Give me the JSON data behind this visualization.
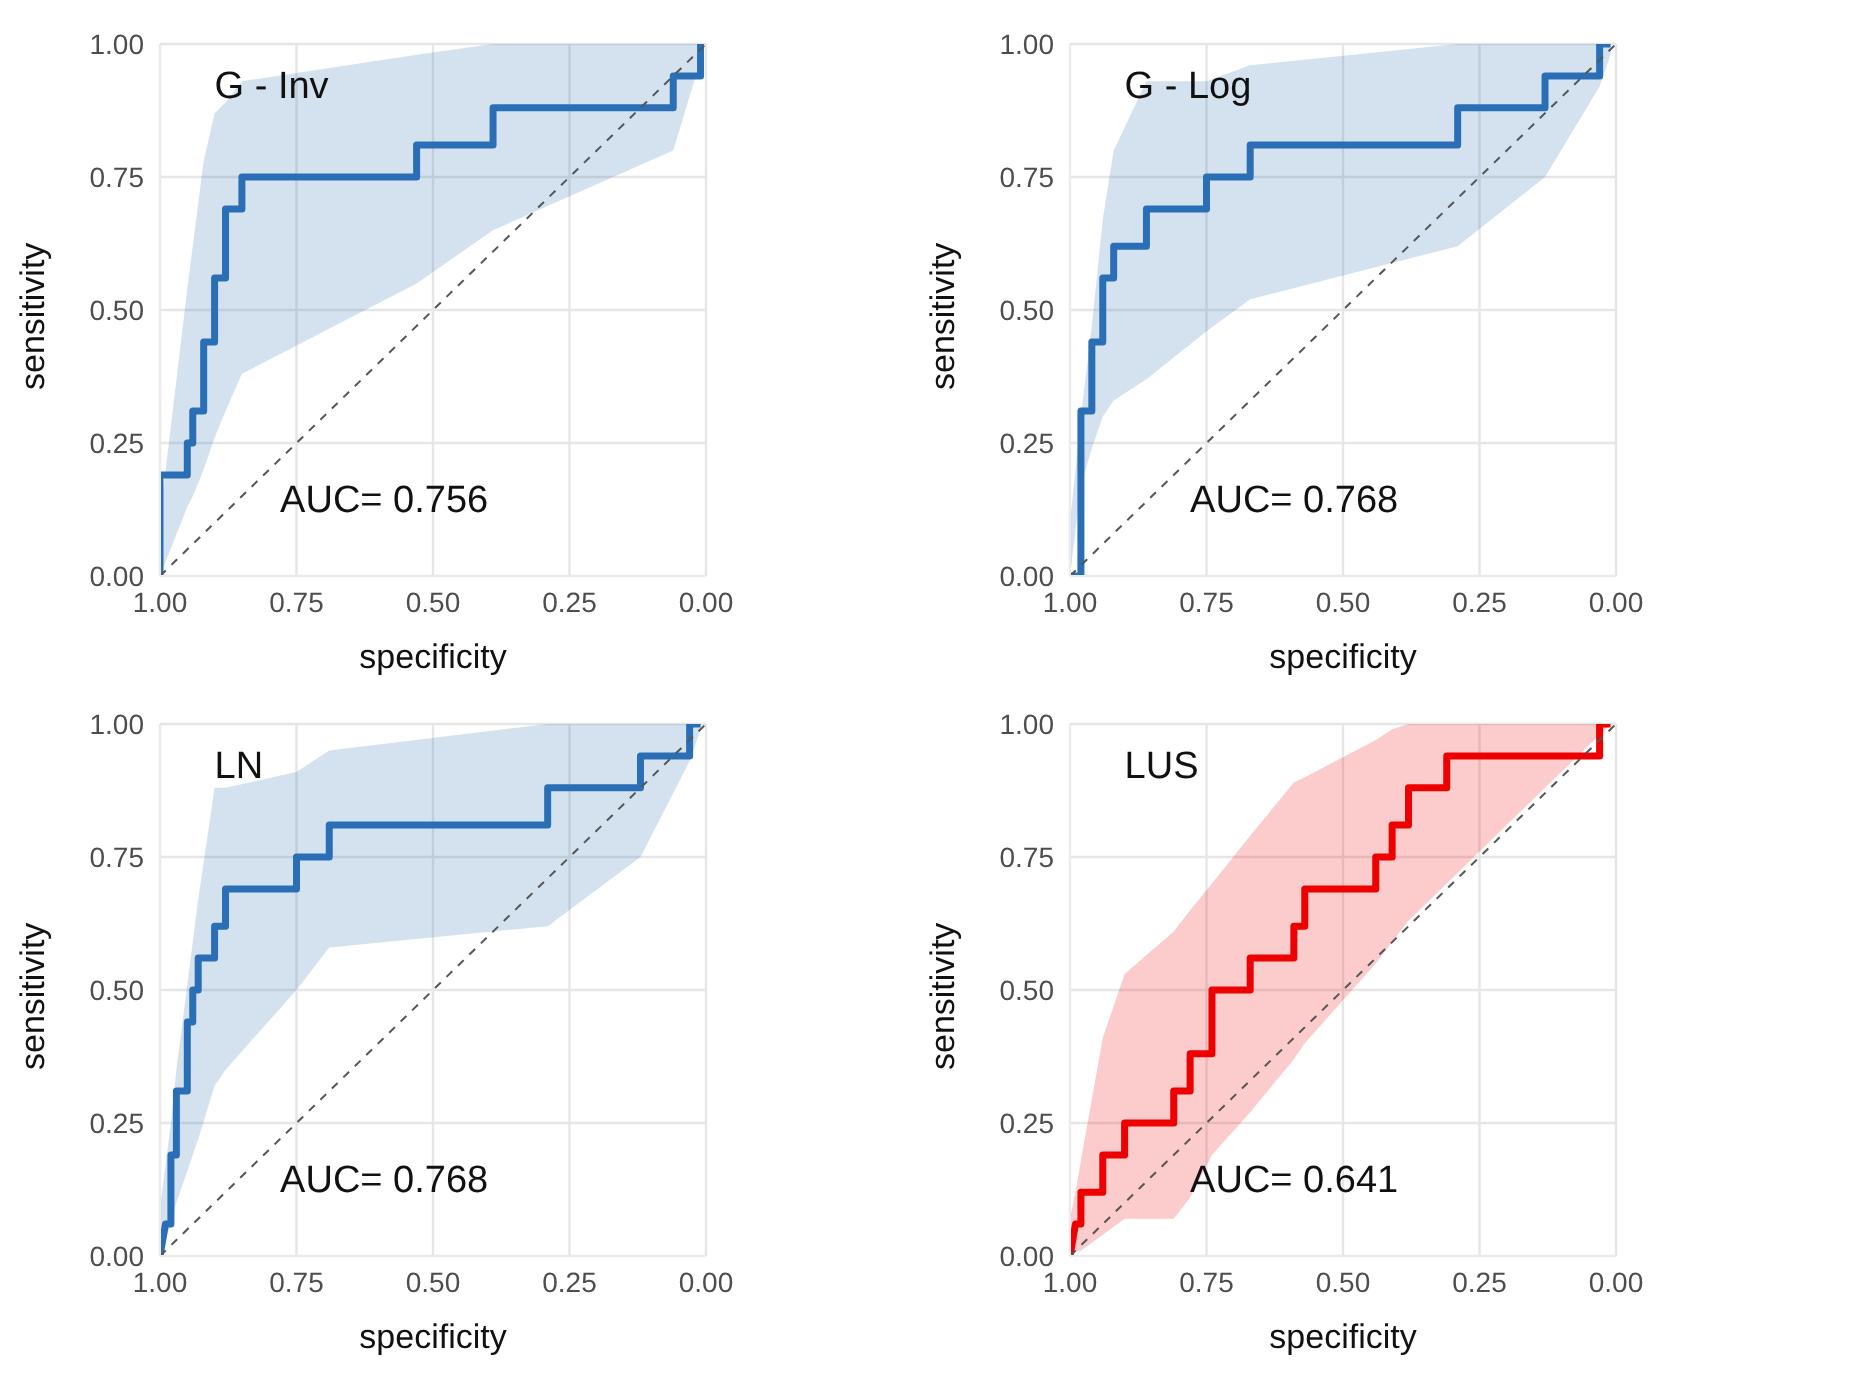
{
  "chart_data": [
    {
      "type": "line",
      "xlabel": "specificity",
      "ylabel": "sensitivity",
      "annotations": [
        "G - Inv",
        "AUC= 0.756"
      ],
      "xlim": [
        1,
        0
      ],
      "ylim": [
        0,
        1
      ],
      "grid": true,
      "xticks": [
        {
          "value": 1,
          "label": "1.00"
        },
        {
          "value": 0.75,
          "label": "0.75"
        },
        {
          "value": 0.5,
          "label": "0.50"
        },
        {
          "value": 0.25,
          "label": "0.25"
        },
        {
          "value": 0,
          "label": "0.00"
        }
      ],
      "yticks": [
        {
          "value": 0,
          "label": "0.00"
        },
        {
          "value": 0.25,
          "label": "0.25"
        },
        {
          "value": 0.5,
          "label": "0.50"
        },
        {
          "value": 0.75,
          "label": "0.75"
        },
        {
          "value": 1,
          "label": "1.00"
        }
      ],
      "series": [
        {
          "type": "line",
          "color": "#2a6fb6",
          "x": [
            1,
            1,
            0.95,
            0.95,
            0.94,
            0.94,
            0.92,
            0.92,
            0.9,
            0.9,
            0.88,
            0.88,
            0.85,
            0.85,
            0.53,
            0.53,
            0.39,
            0.39,
            0.06,
            0.06,
            0.01,
            0.01
          ],
          "values": [
            0,
            0.19,
            0.19,
            0.25,
            0.25,
            0.31,
            0.31,
            0.44,
            0.44,
            0.56,
            0.56,
            0.69,
            0.69,
            0.75,
            0.75,
            0.81,
            0.81,
            0.88,
            0.88,
            0.94,
            0.94,
            1
          ],
          "lower": [
            0,
            0,
            0.13,
            0.13,
            0.15,
            0.15,
            0.2,
            0.2,
            0.26,
            0.26,
            0.31,
            0.31,
            0.38,
            0.38,
            0.55,
            0.55,
            0.65,
            0.65,
            0.8,
            0.8,
            0.97,
            0.97
          ],
          "upper": [
            0.11,
            0.11,
            0.54,
            0.54,
            0.62,
            0.62,
            0.78,
            0.78,
            0.87,
            0.87,
            0.89,
            0.89,
            0.93,
            0.93,
            0.98,
            0.98,
            1,
            1,
            1,
            1,
            1,
            1
          ]
        },
        {
          "type": "line",
          "color": "#555555",
          "line_style": "dashed",
          "x": [
            1,
            0
          ],
          "values": [
            0,
            1
          ]
        }
      ]
    },
    {
      "type": "line",
      "xlabel": "specificity",
      "ylabel": "sensitivity",
      "annotations": [
        "G - Log",
        "AUC= 0.768"
      ],
      "xlim": [
        1,
        0
      ],
      "ylim": [
        0,
        1
      ],
      "grid": true,
      "xticks": [
        {
          "value": 1,
          "label": "1.00"
        },
        {
          "value": 0.75,
          "label": "0.75"
        },
        {
          "value": 0.5,
          "label": "0.50"
        },
        {
          "value": 0.25,
          "label": "0.25"
        },
        {
          "value": 0,
          "label": "0.00"
        }
      ],
      "yticks": [
        {
          "value": 0,
          "label": "0.00"
        },
        {
          "value": 0.25,
          "label": "0.25"
        },
        {
          "value": 0.5,
          "label": "0.50"
        },
        {
          "value": 0.75,
          "label": "0.75"
        },
        {
          "value": 1,
          "label": "1.00"
        }
      ],
      "series": [
        {
          "type": "line",
          "color": "#2a6fb6",
          "x": [
            1,
            0.98,
            0.98,
            0.96,
            0.96,
            0.94,
            0.94,
            0.92,
            0.92,
            0.86,
            0.86,
            0.75,
            0.75,
            0.67,
            0.67,
            0.29,
            0.29,
            0.13,
            0.13,
            0.03,
            0.03,
            0.01
          ],
          "values": [
            0,
            0,
            0.31,
            0.31,
            0.44,
            0.44,
            0.56,
            0.56,
            0.62,
            0.62,
            0.69,
            0.69,
            0.75,
            0.75,
            0.81,
            0.81,
            0.88,
            0.88,
            0.94,
            0.94,
            1,
            1
          ],
          "lower": [
            0,
            0.17,
            0.17,
            0.24,
            0.24,
            0.3,
            0.3,
            0.33,
            0.33,
            0.37,
            0.37,
            0.46,
            0.46,
            0.52,
            0.52,
            0.62,
            0.62,
            0.75,
            0.75,
            0.92,
            0.92,
            0.98
          ],
          "upper": [
            0.1,
            0.3,
            0.3,
            0.47,
            0.47,
            0.67,
            0.67,
            0.8,
            0.8,
            0.93,
            0.93,
            0.93,
            0.93,
            0.96,
            0.96,
            1,
            1,
            1,
            1,
            1,
            1,
            1
          ]
        },
        {
          "type": "line",
          "color": "#555555",
          "line_style": "dashed",
          "x": [
            1,
            0
          ],
          "values": [
            0,
            1
          ]
        }
      ]
    },
    {
      "type": "line",
      "xlabel": "specificity",
      "ylabel": "sensitivity",
      "annotations": [
        "LN",
        "AUC= 0.768"
      ],
      "xlim": [
        1,
        0
      ],
      "ylim": [
        0,
        1
      ],
      "grid": true,
      "xticks": [
        {
          "value": 1,
          "label": "1.00"
        },
        {
          "value": 0.75,
          "label": "0.75"
        },
        {
          "value": 0.5,
          "label": "0.50"
        },
        {
          "value": 0.25,
          "label": "0.25"
        },
        {
          "value": 0,
          "label": "0.00"
        }
      ],
      "yticks": [
        {
          "value": 0,
          "label": "0.00"
        },
        {
          "value": 0.25,
          "label": "0.25"
        },
        {
          "value": 0.5,
          "label": "0.50"
        },
        {
          "value": 0.75,
          "label": "0.75"
        },
        {
          "value": 1,
          "label": "1.00"
        }
      ],
      "series": [
        {
          "type": "line",
          "color": "#2a6fb6",
          "x": [
            1,
            0.99,
            0.98,
            0.98,
            0.97,
            0.97,
            0.95,
            0.95,
            0.94,
            0.94,
            0.93,
            0.93,
            0.9,
            0.9,
            0.88,
            0.88,
            0.75,
            0.75,
            0.69,
            0.69,
            0.29,
            0.29,
            0.12,
            0.12,
            0.03,
            0.03,
            0.01
          ],
          "values": [
            0,
            0.06,
            0.06,
            0.19,
            0.19,
            0.31,
            0.31,
            0.44,
            0.44,
            0.5,
            0.5,
            0.56,
            0.56,
            0.62,
            0.62,
            0.69,
            0.69,
            0.75,
            0.75,
            0.81,
            0.81,
            0.88,
            0.88,
            0.94,
            0.94,
            1,
            1
          ],
          "lower": [
            0,
            0.03,
            0.06,
            0.06,
            0.1,
            0.1,
            0.16,
            0.16,
            0.19,
            0.19,
            0.22,
            0.22,
            0.32,
            0.32,
            0.35,
            0.35,
            0.5,
            0.5,
            0.58,
            0.58,
            0.62,
            0.62,
            0.75,
            0.75,
            0.93,
            0.93,
            0.99
          ],
          "upper": [
            0.09,
            0.17,
            0.25,
            0.25,
            0.35,
            0.35,
            0.51,
            0.51,
            0.59,
            0.59,
            0.67,
            0.67,
            0.88,
            0.88,
            0.88,
            0.88,
            0.91,
            0.91,
            0.95,
            0.95,
            1,
            1,
            1,
            1,
            1,
            1,
            1
          ]
        },
        {
          "type": "line",
          "color": "#555555",
          "line_style": "dashed",
          "x": [
            1,
            0
          ],
          "values": [
            0,
            1
          ]
        }
      ]
    },
    {
      "type": "line",
      "xlabel": "specificity",
      "ylabel": "sensitivity",
      "annotations": [
        "LUS",
        "AUC= 0.641"
      ],
      "xlim": [
        1,
        0
      ],
      "ylim": [
        0,
        1
      ],
      "grid": true,
      "xticks": [
        {
          "value": 1,
          "label": "1.00"
        },
        {
          "value": 0.75,
          "label": "0.75"
        },
        {
          "value": 0.5,
          "label": "0.50"
        },
        {
          "value": 0.25,
          "label": "0.25"
        },
        {
          "value": 0,
          "label": "0.00"
        }
      ],
      "yticks": [
        {
          "value": 0,
          "label": "0.00"
        },
        {
          "value": 0.25,
          "label": "0.25"
        },
        {
          "value": 0.5,
          "label": "0.50"
        },
        {
          "value": 0.75,
          "label": "0.75"
        },
        {
          "value": 1,
          "label": "1.00"
        }
      ],
      "series": [
        {
          "type": "line",
          "color": "#ee0000",
          "x": [
            1,
            0.99,
            0.98,
            0.98,
            0.94,
            0.94,
            0.9,
            0.9,
            0.81,
            0.81,
            0.78,
            0.78,
            0.74,
            0.74,
            0.67,
            0.67,
            0.59,
            0.59,
            0.57,
            0.57,
            0.44,
            0.44,
            0.41,
            0.41,
            0.38,
            0.38,
            0.31,
            0.31,
            0.03,
            0.03,
            0.01
          ],
          "values": [
            0,
            0.06,
            0.06,
            0.12,
            0.12,
            0.19,
            0.19,
            0.25,
            0.25,
            0.31,
            0.31,
            0.38,
            0.38,
            0.5,
            0.5,
            0.56,
            0.56,
            0.62,
            0.62,
            0.69,
            0.69,
            0.75,
            0.75,
            0.81,
            0.81,
            0.88,
            0.88,
            0.94,
            0.94,
            1,
            1
          ],
          "lower": [
            0,
            0.01,
            0.01,
            0.01,
            0.04,
            0.04,
            0.07,
            0.07,
            0.07,
            0.07,
            0.11,
            0.11,
            0.19,
            0.19,
            0.27,
            0.27,
            0.37,
            0.37,
            0.4,
            0.4,
            0.55,
            0.55,
            0.59,
            0.59,
            0.63,
            0.63,
            0.7,
            0.7,
            0.98,
            0.98,
            1
          ],
          "upper": [
            0.07,
            0.12,
            0.18,
            0.18,
            0.41,
            0.41,
            0.53,
            0.53,
            0.61,
            0.61,
            0.65,
            0.65,
            0.7,
            0.7,
            0.79,
            0.79,
            0.89,
            0.89,
            0.9,
            0.9,
            0.97,
            0.97,
            0.99,
            0.99,
            1,
            1,
            1,
            1,
            1,
            1,
            1
          ]
        },
        {
          "type": "line",
          "color": "#555555",
          "line_style": "dashed",
          "x": [
            1,
            0
          ],
          "values": [
            0,
            1
          ]
        }
      ]
    }
  ]
}
